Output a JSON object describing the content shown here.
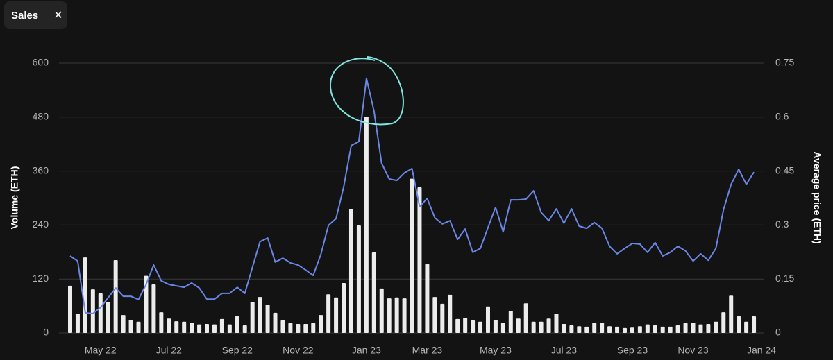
{
  "header": {
    "title": "Sales"
  },
  "chart_data": {
    "type": "combo",
    "y_label": "Volume (ETH)",
    "y2_label": "Average price (ETH)",
    "categories": [
      null,
      null,
      null,
      null,
      "May 22",
      null,
      null,
      null,
      null,
      null,
      null,
      null,
      null,
      "Jul 22",
      null,
      null,
      null,
      null,
      null,
      null,
      null,
      null,
      "Sep 22",
      null,
      null,
      null,
      null,
      null,
      null,
      null,
      "Nov 22",
      null,
      null,
      null,
      null,
      null,
      null,
      null,
      null,
      "Jan 23",
      null,
      null,
      null,
      null,
      null,
      null,
      null,
      "Mar 23",
      null,
      null,
      null,
      null,
      null,
      null,
      null,
      null,
      "May 23",
      null,
      null,
      null,
      null,
      null,
      null,
      null,
      null,
      "Jul 23",
      null,
      null,
      null,
      null,
      null,
      null,
      null,
      null,
      "Sep 23",
      null,
      null,
      null,
      null,
      null,
      null,
      null,
      "Nov 23",
      null,
      null,
      null,
      null,
      null,
      null,
      null,
      null,
      "Jan 24"
    ],
    "series": [
      {
        "type": "bar",
        "axis": "y",
        "color": "#ececec",
        "values": [
          105,
          43,
          168,
          97,
          88,
          69,
          162,
          40,
          29,
          25,
          127,
          108,
          46,
          32,
          26,
          25,
          23,
          19,
          20,
          19,
          31,
          19,
          37,
          17,
          69,
          80,
          63,
          45,
          28,
          22,
          20,
          20,
          22,
          40,
          86,
          79,
          111,
          276,
          239,
          481,
          179,
          99,
          77,
          79,
          77,
          343,
          324,
          153,
          80,
          65,
          85,
          31,
          34,
          28,
          25,
          59,
          29,
          23,
          49,
          32,
          66,
          25,
          25,
          32,
          43,
          20,
          17,
          15,
          14,
          23,
          23,
          15,
          14,
          11,
          12,
          15,
          19,
          17,
          14,
          14,
          17,
          22,
          23,
          19,
          20,
          25,
          46,
          83,
          37,
          25,
          37,
          null
        ]
      },
      {
        "type": "line",
        "axis": "y2",
        "color": "#6a86e6",
        "values": [
          0.214,
          0.2,
          0.056,
          0.054,
          0.071,
          0.098,
          0.125,
          0.102,
          0.102,
          0.093,
          0.135,
          0.189,
          0.145,
          0.135,
          0.131,
          0.127,
          0.139,
          0.125,
          0.094,
          0.094,
          0.11,
          0.11,
          0.127,
          0.11,
          0.183,
          0.254,
          0.264,
          0.197,
          0.208,
          0.195,
          0.189,
          0.175,
          0.16,
          0.218,
          0.299,
          0.318,
          0.405,
          0.521,
          0.532,
          0.708,
          0.617,
          0.472,
          0.428,
          0.424,
          0.445,
          0.457,
          0.351,
          0.374,
          0.32,
          0.303,
          0.312,
          0.26,
          0.289,
          0.224,
          0.235,
          0.293,
          0.349,
          0.281,
          0.37,
          0.37,
          0.372,
          0.395,
          0.335,
          0.312,
          0.345,
          0.305,
          0.345,
          0.297,
          0.291,
          0.307,
          0.291,
          0.241,
          0.22,
          0.235,
          0.249,
          0.247,
          0.224,
          0.251,
          0.214,
          0.224,
          0.241,
          0.228,
          0.2,
          0.22,
          0.202,
          0.235,
          0.343,
          0.413,
          0.455,
          0.413,
          0.447,
          null
        ]
      }
    ],
    "ylim": [
      0,
      600
    ],
    "yticks": [
      0,
      120,
      240,
      360,
      480,
      600
    ],
    "y2lim": [
      0,
      0.75
    ],
    "y2ticks": [
      0,
      0.15,
      0.3,
      0.45,
      0.6,
      0.75
    ],
    "grid": true
  }
}
